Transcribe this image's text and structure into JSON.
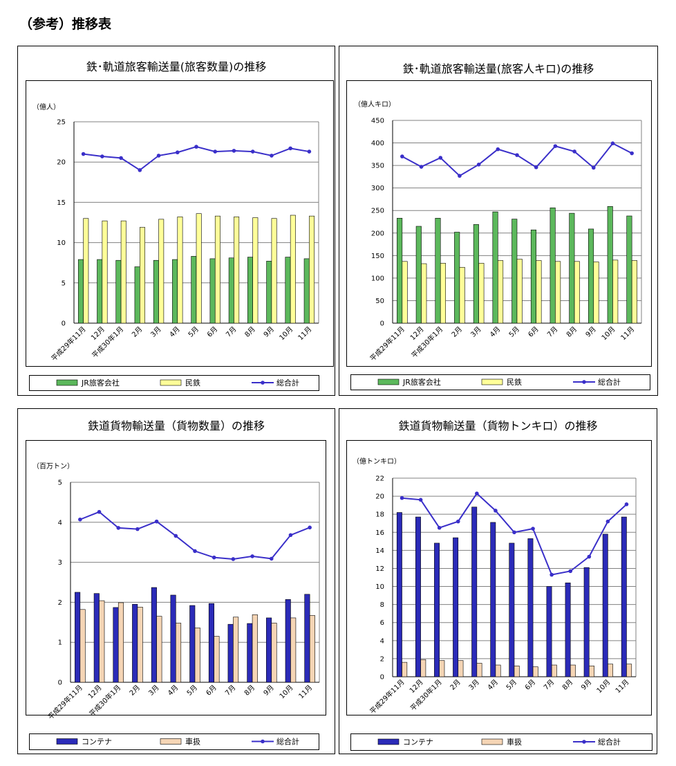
{
  "page": {
    "heading": "（参考）推移表"
  },
  "chart_data": [
    {
      "type": "bar",
      "title": "鉄･軌道旅客輸送量(旅客数量)の推移",
      "unit_label": "（億人）",
      "categories": [
        "平成29年11月",
        "12月",
        "平成30年1月",
        "2月",
        "3月",
        "4月",
        "5月",
        "6月",
        "7月",
        "8月",
        "9月",
        "10月",
        "11月"
      ],
      "ylim": [
        0,
        25
      ],
      "yticks": [
        0,
        5,
        10,
        15,
        20,
        25
      ],
      "grid": true,
      "legend": "bottom",
      "series": [
        {
          "name": "JR旅客会社",
          "kind": "bar",
          "color": "#5cb85c",
          "values": [
            7.9,
            7.9,
            7.8,
            7.0,
            7.8,
            7.9,
            8.3,
            8.0,
            8.1,
            8.2,
            7.7,
            8.2,
            8.0
          ]
        },
        {
          "name": "民鉄",
          "kind": "bar",
          "color": "#ffff99",
          "values": [
            13.0,
            12.7,
            12.7,
            11.9,
            12.9,
            13.2,
            13.6,
            13.3,
            13.2,
            13.1,
            13.0,
            13.4,
            13.3
          ]
        },
        {
          "name": "総合計",
          "kind": "line",
          "color": "#3a2fc9",
          "values": [
            21.0,
            20.7,
            20.5,
            19.0,
            20.8,
            21.2,
            21.9,
            21.3,
            21.4,
            21.3,
            20.8,
            21.7,
            21.3
          ]
        }
      ]
    },
    {
      "type": "bar",
      "title": "鉄･軌道旅客輸送量(旅客人キロ)の推移",
      "unit_label": "（億人キロ）",
      "categories": [
        "平成29年11月",
        "12月",
        "平成30年1月",
        "2月",
        "3月",
        "4月",
        "5月",
        "6月",
        "7月",
        "8月",
        "9月",
        "10月",
        "11月"
      ],
      "ylim": [
        0,
        450
      ],
      "yticks": [
        0,
        50,
        100,
        150,
        200,
        250,
        300,
        350,
        400,
        450
      ],
      "grid": true,
      "legend": "bottom",
      "series": [
        {
          "name": "JR旅客会社",
          "kind": "bar",
          "color": "#5cb85c",
          "values": [
            233,
            215,
            233,
            202,
            219,
            247,
            231,
            207,
            256,
            244,
            209,
            259,
            238
          ]
        },
        {
          "name": "民鉄",
          "kind": "bar",
          "color": "#ffff99",
          "values": [
            137,
            132,
            133,
            124,
            133,
            139,
            142,
            139,
            137,
            137,
            136,
            140,
            139
          ]
        },
        {
          "name": "総合計",
          "kind": "line",
          "color": "#3a2fc9",
          "values": [
            370,
            347,
            367,
            327,
            352,
            386,
            373,
            346,
            393,
            381,
            345,
            399,
            377
          ]
        }
      ]
    },
    {
      "type": "bar",
      "title": "鉄道貨物輸送量（貨物数量）の推移",
      "unit_label": "（百万トン）",
      "categories": [
        "平成29年11月",
        "12月",
        "平成30年1月",
        "2月",
        "3月",
        "4月",
        "5月",
        "6月",
        "7月",
        "8月",
        "9月",
        "10月",
        "11月"
      ],
      "ylim": [
        0,
        5
      ],
      "yticks": [
        0,
        1,
        2,
        3,
        4,
        5
      ],
      "grid": true,
      "legend": "bottom",
      "series": [
        {
          "name": "コンテナ",
          "kind": "bar",
          "color": "#2b2bb8",
          "values": [
            2.25,
            2.22,
            1.87,
            1.95,
            2.37,
            2.18,
            1.92,
            1.97,
            1.45,
            1.47,
            1.61,
            2.07,
            2.2
          ]
        },
        {
          "name": "車扱",
          "kind": "bar",
          "color": "#f5d5b5",
          "values": [
            1.82,
            2.04,
            1.99,
            1.88,
            1.65,
            1.48,
            1.36,
            1.15,
            1.63,
            1.69,
            1.48,
            1.61,
            1.67
          ]
        },
        {
          "name": "総合計",
          "kind": "line",
          "color": "#3a2fc9",
          "values": [
            4.07,
            4.26,
            3.86,
            3.83,
            4.02,
            3.66,
            3.28,
            3.12,
            3.08,
            3.15,
            3.09,
            3.68,
            3.87
          ]
        }
      ]
    },
    {
      "type": "bar",
      "title": "鉄道貨物輸送量（貨物トンキロ）の推移",
      "unit_label": "（億トンキロ）",
      "categories": [
        "平成29年11月",
        "12月",
        "平成30年1月",
        "2月",
        "3月",
        "4月",
        "5月",
        "6月",
        "7月",
        "8月",
        "9月",
        "10月",
        "11月"
      ],
      "ylim": [
        0,
        22
      ],
      "yticks": [
        0,
        2,
        4,
        6,
        8,
        10,
        12,
        14,
        16,
        18,
        20,
        22
      ],
      "grid": true,
      "legend": "bottom",
      "series": [
        {
          "name": "コンテナ",
          "kind": "bar",
          "color": "#2b2bb8",
          "values": [
            18.2,
            17.7,
            14.8,
            15.4,
            18.8,
            17.1,
            14.8,
            15.3,
            10.0,
            10.4,
            12.1,
            15.8,
            17.7
          ]
        },
        {
          "name": "車扱",
          "kind": "bar",
          "color": "#f5d5b5",
          "values": [
            1.6,
            1.9,
            1.8,
            1.8,
            1.5,
            1.3,
            1.2,
            1.1,
            1.3,
            1.3,
            1.2,
            1.4,
            1.4
          ]
        },
        {
          "name": "総合計",
          "kind": "line",
          "color": "#3a2fc9",
          "values": [
            19.8,
            19.6,
            16.5,
            17.2,
            20.3,
            18.4,
            16.0,
            16.4,
            11.3,
            11.7,
            13.3,
            17.2,
            19.1
          ]
        }
      ]
    }
  ]
}
